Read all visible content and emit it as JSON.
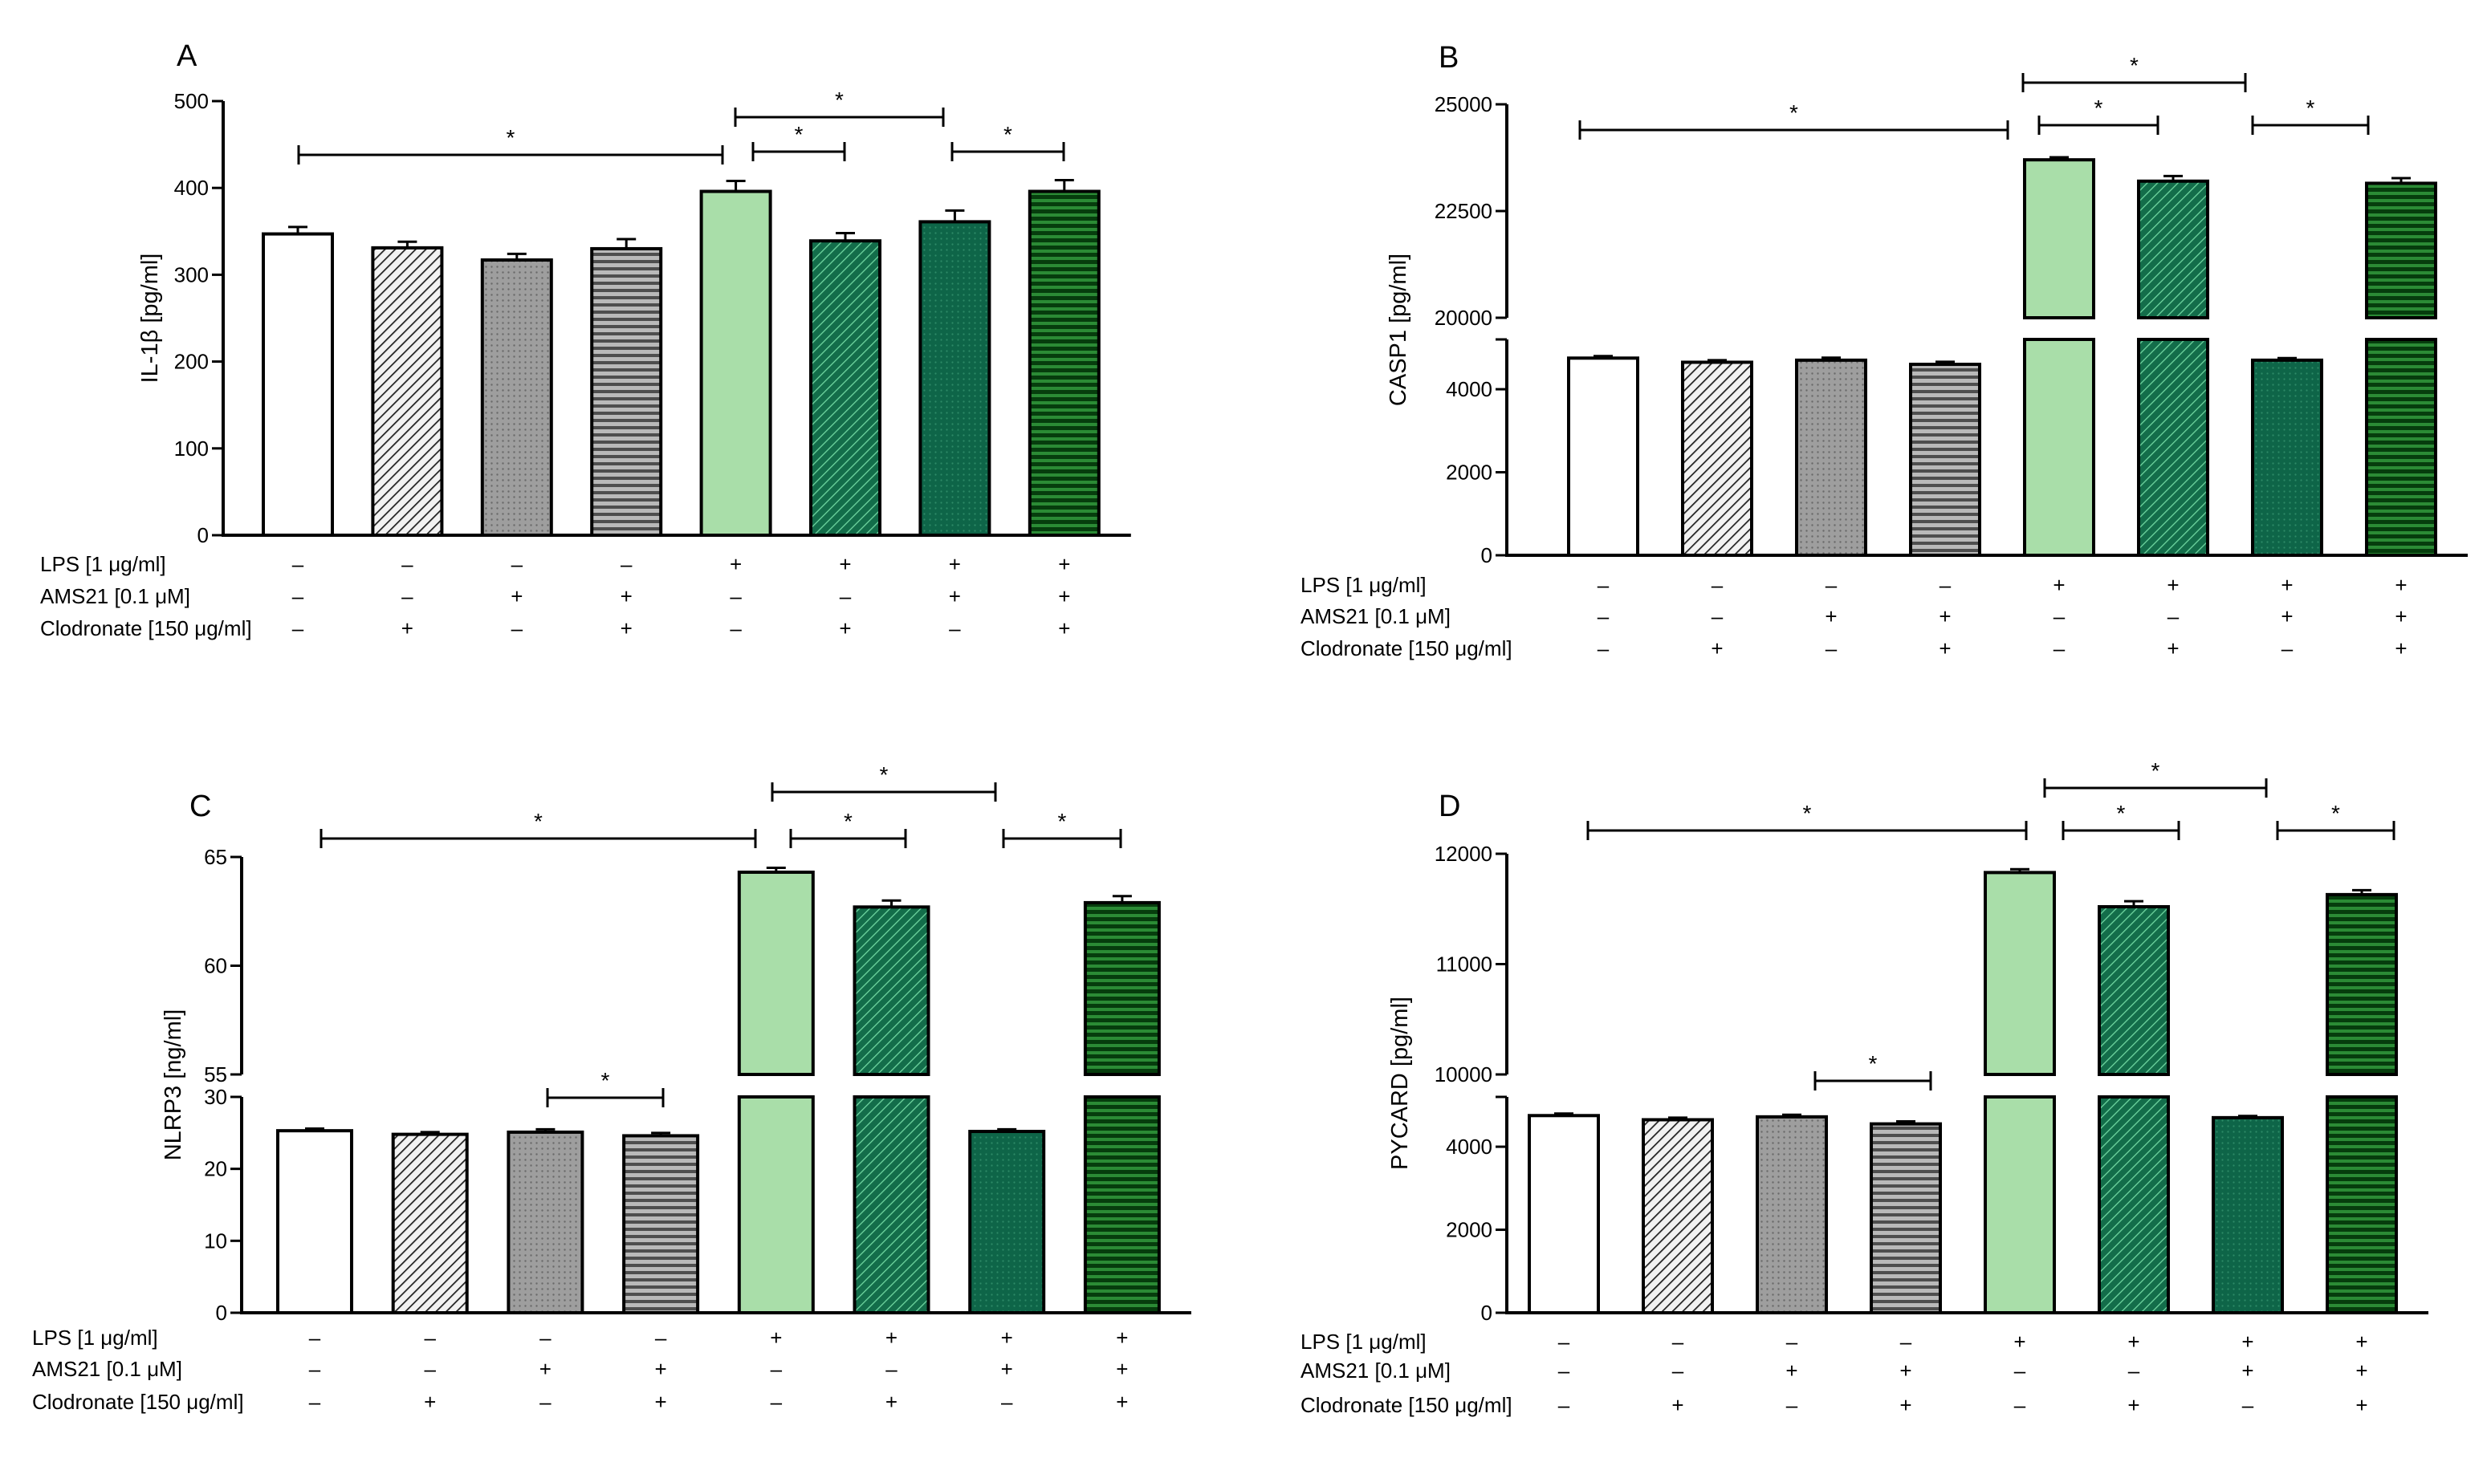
{
  "colors": {
    "white": "#ffffff",
    "diag_light_gray": "#f2f2f2",
    "dot_gray": "#9e9e9e",
    "hstripe_gray": "#7c7c7c",
    "light_green": "#a9dea9",
    "diag_green": "#136d4a",
    "dot_green": "#0e6548",
    "hstripe_green": "#0a5a18"
  },
  "treatment_rows": [
    {
      "label": "LPS [1 μg/ml]",
      "signs": [
        "–",
        "–",
        "–",
        "–",
        "+",
        "+",
        "+",
        "+"
      ]
    },
    {
      "label": "AMS21 [0.1 μM]",
      "signs": [
        "–",
        "–",
        "+",
        "+",
        "–",
        "–",
        "+",
        "+"
      ]
    },
    {
      "label": "Clodronate [150 μg/ml]",
      "signs": [
        "–",
        "+",
        "–",
        "+",
        "–",
        "+",
        "–",
        "+"
      ]
    }
  ],
  "chart_data": [
    {
      "panel": "A",
      "type": "bar",
      "ylabel": "IL-1β [pg/ml]",
      "ylim": [
        0,
        500
      ],
      "yticks": [
        "0",
        "100",
        "200",
        "300",
        "400",
        "500"
      ],
      "broken_axis": false,
      "values": [
        347,
        331,
        317,
        330,
        396,
        339,
        361,
        396
      ],
      "errors": [
        8,
        7,
        7,
        11,
        12,
        9,
        13,
        13
      ],
      "significance": [
        {
          "from": 0,
          "to": 4,
          "label": "*"
        },
        {
          "from": 4,
          "to": 5,
          "label": "*"
        },
        {
          "from": 4,
          "to": 6,
          "label": "*"
        },
        {
          "from": 6,
          "to": 7,
          "label": "*"
        }
      ]
    },
    {
      "panel": "B",
      "type": "bar",
      "ylabel": "CASP1 [pg/ml]",
      "broken_axis": true,
      "lower_ylim": [
        0,
        5200
      ],
      "lower_yticks": [
        "0",
        "2000",
        "4000"
      ],
      "upper_ylim": [
        20000,
        25000
      ],
      "upper_yticks": [
        "20000",
        "22500",
        "25000"
      ],
      "values": [
        4750,
        4650,
        4700,
        4600,
        23700,
        23200,
        4700,
        23150
      ],
      "errors": [
        50,
        50,
        60,
        60,
        60,
        120,
        50,
        120
      ],
      "significance": [
        {
          "from": 0,
          "to": 4,
          "label": "*"
        },
        {
          "from": 4,
          "to": 5,
          "label": "*"
        },
        {
          "from": 4,
          "to": 6,
          "label": "*"
        },
        {
          "from": 6,
          "to": 7,
          "label": "*"
        }
      ]
    },
    {
      "panel": "C",
      "type": "bar",
      "ylabel": "NLRP3 [ng/ml]",
      "broken_axis": true,
      "lower_ylim": [
        0,
        30
      ],
      "lower_yticks": [
        "0",
        "10",
        "20",
        "30"
      ],
      "upper_ylim": [
        55,
        65
      ],
      "upper_yticks": [
        "55",
        "60",
        "65"
      ],
      "values": [
        25.3,
        24.8,
        25.1,
        24.6,
        64.3,
        62.7,
        25.2,
        62.9
      ],
      "errors": [
        0.3,
        0.3,
        0.4,
        0.4,
        0.2,
        0.3,
        0.3,
        0.3
      ],
      "significance": [
        {
          "from": 0,
          "to": 4,
          "label": "*"
        },
        {
          "from": 4,
          "to": 5,
          "label": "*"
        },
        {
          "from": 4,
          "to": 6,
          "label": "*"
        },
        {
          "from": 6,
          "to": 7,
          "label": "*"
        },
        {
          "from": 2,
          "to": 3,
          "label": "*"
        }
      ]
    },
    {
      "panel": "D",
      "type": "bar",
      "ylabel": "PYCARD [pg/ml]",
      "broken_axis": true,
      "lower_ylim": [
        0,
        5200
      ],
      "lower_yticks": [
        "0",
        "2000",
        "4000"
      ],
      "upper_ylim": [
        10000,
        12000
      ],
      "upper_yticks": [
        "10000",
        "11000",
        "12000"
      ],
      "values": [
        4750,
        4650,
        4720,
        4550,
        11830,
        11520,
        4700,
        11630
      ],
      "errors": [
        50,
        50,
        50,
        60,
        30,
        50,
        40,
        40
      ],
      "significance": [
        {
          "from": 0,
          "to": 4,
          "label": "*"
        },
        {
          "from": 4,
          "to": 5,
          "label": "*"
        },
        {
          "from": 4,
          "to": 6,
          "label": "*"
        },
        {
          "from": 6,
          "to": 7,
          "label": "*"
        },
        {
          "from": 2,
          "to": 3,
          "label": "*"
        }
      ]
    }
  ]
}
